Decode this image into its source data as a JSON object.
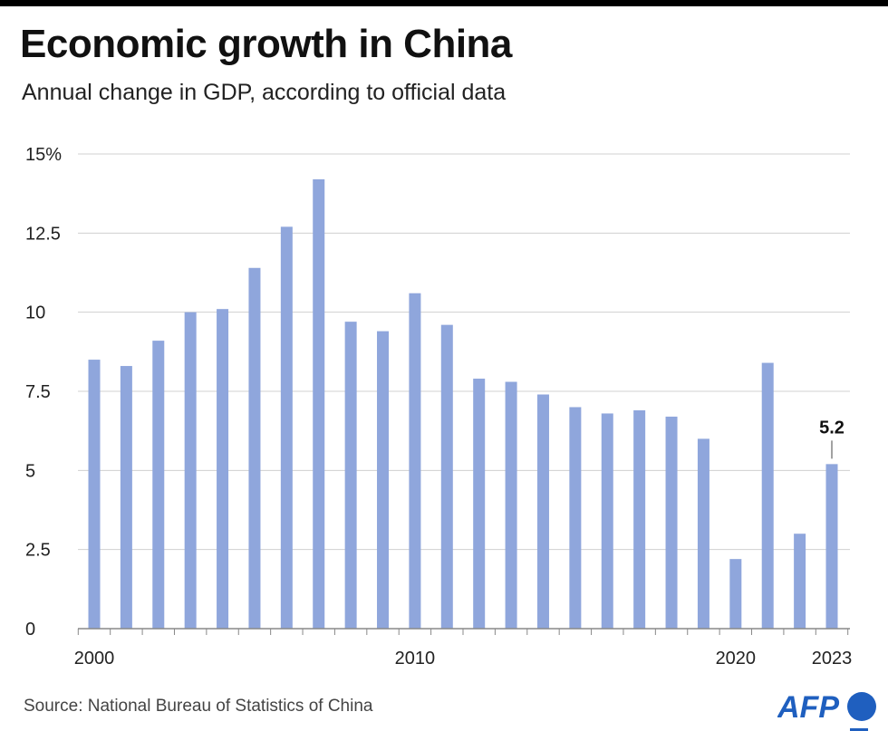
{
  "title": "Economic growth in China",
  "subtitle": "Annual change in GDP, according to official data",
  "source": "Source: National Bureau of Statistics of China",
  "logo": "AFP",
  "colors": {
    "bar": "#8fa6dc",
    "grid": "#d0d0d0",
    "logo": "#1f5fbf"
  },
  "chart_data": {
    "type": "bar",
    "categories": [
      "2000",
      "2001",
      "2002",
      "2003",
      "2004",
      "2005",
      "2006",
      "2007",
      "2008",
      "2009",
      "2010",
      "2011",
      "2012",
      "2013",
      "2014",
      "2015",
      "2016",
      "2017",
      "2018",
      "2019",
      "2020",
      "2021",
      "2022",
      "2023"
    ],
    "values": [
      8.5,
      8.3,
      9.1,
      10.0,
      10.1,
      11.4,
      12.7,
      14.2,
      9.7,
      9.4,
      10.6,
      9.6,
      7.9,
      7.8,
      7.4,
      7.0,
      6.8,
      6.9,
      6.7,
      6.0,
      2.2,
      8.4,
      3.0,
      5.2
    ],
    "x_tick_labels": [
      "2000",
      "2010",
      "2020",
      "2023"
    ],
    "y_ticks": [
      0,
      2.5,
      5,
      7.5,
      10,
      12.5,
      15
    ],
    "y_tick_labels": [
      "0",
      "2.5",
      "5",
      "7.5",
      "10",
      "12.5",
      "15%"
    ],
    "ylim": [
      0,
      15
    ],
    "grid": true,
    "annotations": [
      {
        "category": "2023",
        "text": "5.2"
      }
    ],
    "xlabel": "",
    "ylabel": ""
  }
}
